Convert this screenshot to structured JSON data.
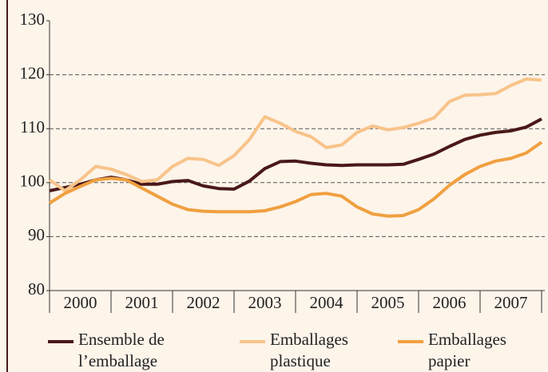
{
  "chart_data": {
    "type": "line",
    "categories": [
      "2000",
      "2001",
      "2002",
      "2003",
      "2004",
      "2005",
      "2006",
      "2007"
    ],
    "x": [
      2000,
      2000.25,
      2000.5,
      2000.75,
      2001,
      2001.25,
      2001.5,
      2001.75,
      2002,
      2002.25,
      2002.5,
      2002.75,
      2003,
      2003.25,
      2003.5,
      2003.75,
      2004,
      2004.25,
      2004.5,
      2004.75,
      2005,
      2005.25,
      2005.5,
      2005.75,
      2006,
      2006.25,
      2006.5,
      2006.75,
      2007,
      2007.25,
      2007.5,
      2007.75,
      2008
    ],
    "xlim": [
      2000,
      2008
    ],
    "xticks": [
      2000,
      2001,
      2002,
      2003,
      2004,
      2005,
      2006,
      2007,
      2008
    ],
    "ylim": [
      80,
      130
    ],
    "yticks": [
      80,
      90,
      100,
      110,
      120,
      130
    ],
    "grid": true,
    "series": [
      {
        "name": "Ensemble de l’emballage",
        "color": "#4a1818",
        "values": [
          98.5,
          99.1,
          99.7,
          100.5,
          101.0,
          100.5,
          99.7,
          99.7,
          100.2,
          100.4,
          99.4,
          98.9,
          98.8,
          100.3,
          102.6,
          103.9,
          104.0,
          103.6,
          103.3,
          103.2,
          103.3,
          103.3,
          103.3,
          103.4,
          104.3,
          105.3,
          106.7,
          108.0,
          108.8,
          109.3,
          109.6,
          110.3,
          111.8
        ]
      },
      {
        "name": "Emballages plastique",
        "color": "#f8c48a",
        "values": [
          100.5,
          98.5,
          100.5,
          103.0,
          102.5,
          101.5,
          100.2,
          100.5,
          103.0,
          104.5,
          104.3,
          103.2,
          105.0,
          108.0,
          112.2,
          111.0,
          109.5,
          108.5,
          106.5,
          107.0,
          109.3,
          110.5,
          109.8,
          110.2,
          111.0,
          112.0,
          115.0,
          116.2,
          116.3,
          116.5,
          118.0,
          119.2,
          119.0
        ]
      },
      {
        "name": "Emballages papier",
        "color": "#f0a040",
        "values": [
          96.2,
          98.0,
          99.3,
          100.5,
          100.8,
          100.5,
          99.0,
          97.5,
          96.0,
          95.0,
          94.7,
          94.6,
          94.6,
          94.6,
          94.8,
          95.5,
          96.5,
          97.8,
          98.0,
          97.5,
          95.5,
          94.2,
          93.8,
          93.9,
          95.0,
          97.0,
          99.5,
          101.5,
          103.0,
          104.0,
          104.5,
          105.5,
          107.5
        ]
      }
    ]
  }
}
